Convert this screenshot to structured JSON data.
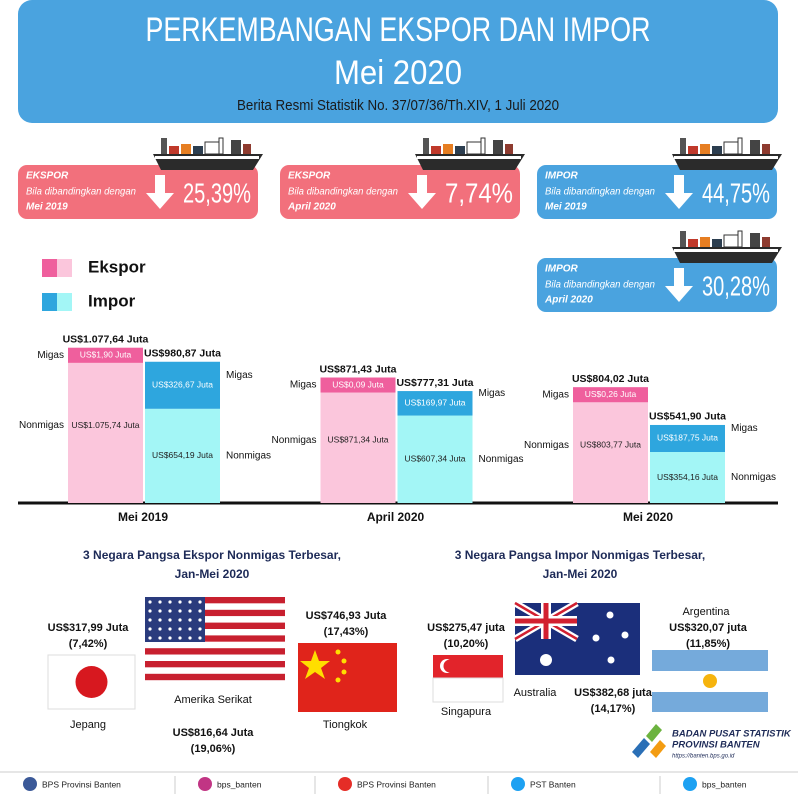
{
  "header": {
    "title": "PERKEMBANGAN EKSPOR DAN IMPOR",
    "subtitle": "Mei 2020",
    "source": "Berita Resmi Statistik No. 37/07/36/Th.XIV, 1 Juli 2020"
  },
  "cards": [
    {
      "label": "EKSPOR",
      "comparison": "Bila dibandingkan dengan",
      "period": "Mei 2019",
      "value": "25,39%"
    },
    {
      "label": "EKSPOR",
      "comparison": "Bila dibandingkan dengan",
      "period": "April 2020",
      "value": "7,74%"
    },
    {
      "label": "IMPOR",
      "comparison": "Bila dibandingkan dengan",
      "period": "Mei 2019",
      "value": "44,75%"
    },
    {
      "label": "IMPOR",
      "comparison": "Bila dibandingkan dengan",
      "period": "April 2020",
      "value": "30,28%"
    }
  ],
  "chart_data": {
    "type": "bar",
    "stacked": true,
    "categories": [
      "Mei 2019",
      "April 2020",
      "Mei 2020"
    ],
    "groups": [
      {
        "name": "Ekspor",
        "totals": [
          1077.64,
          871.43,
          804.02
        ],
        "total_labels": [
          "US$1.077,64 Juta",
          "US$871,43 Juta",
          "US$804,02 Juta"
        ],
        "series": [
          {
            "name": "Nonmigas",
            "color": "#fbc6dc",
            "values": [
              1075.74,
              871.34,
              803.77
            ],
            "value_labels": [
              "US$1.075,74 Juta",
              "US$871,34 Juta",
              "US$803,77 Juta"
            ]
          },
          {
            "name": "Migas",
            "color": "#ef5f9d",
            "values": [
              1.9,
              0.09,
              0.26
            ],
            "value_labels": [
              "US$1,90 Juta",
              "US$0,09 Juta",
              "US$0,26 Juta"
            ]
          }
        ]
      },
      {
        "name": "Impor",
        "totals": [
          980.87,
          777.31,
          541.9
        ],
        "total_labels": [
          "US$980,87 Juta",
          "US$777,31 Juta",
          "US$541,90 Juta"
        ],
        "series": [
          {
            "name": "Nonmigas",
            "color": "#a3f6f6",
            "values": [
              654.19,
              607.34,
              354.16
            ],
            "value_labels": [
              "US$654,19 Juta",
              "US$607,34 Juta",
              "US$354,16 Juta"
            ]
          },
          {
            "name": "Migas",
            "color": "#2ea6de",
            "values": [
              326.67,
              169.97,
              187.75
            ],
            "value_labels": [
              "US$326,67 Juta",
              "US$169,97 Juta",
              "US$187,75 Juta"
            ]
          }
        ]
      }
    ]
  },
  "export_countries": {
    "title": [
      "3 Negara Pangsa Ekspor Nonmigas Terbesar,",
      "Jan-Mei 2020"
    ],
    "countries": [
      {
        "name": "Jepang",
        "value": "US$317,99 Juta",
        "share": "(7,42%)"
      },
      {
        "name": "Amerika Serikat",
        "value": "US$816,64 Juta",
        "share": "(19,06%)"
      },
      {
        "name": "Tiongkok",
        "value": "US$746,93 Juta",
        "share": "(17,43%)"
      }
    ]
  },
  "import_countries": {
    "title": [
      "3 Negara Pangsa Impor Nonmigas Terbesar,",
      "Jan-Mei 2020"
    ],
    "countries": [
      {
        "name": "Singapura",
        "value": "US$275,47 juta",
        "share": "(10,20%)"
      },
      {
        "name": "Australia",
        "value": "US$382,68 juta",
        "share": "(14,17%)"
      },
      {
        "name": "Argentina",
        "value": "US$320,07 juta",
        "share": "(11,85%)"
      }
    ]
  },
  "logo": {
    "name": "BADAN PUSAT STATISTIK",
    "region": "PROVINSI BANTEN",
    "url": "https://banten.bps.go.id"
  },
  "footer": [
    "BPS Provinsi Banten",
    "bps_banten",
    "BPS Provinsi Banten",
    "PST Banten",
    "bps_banten"
  ]
}
